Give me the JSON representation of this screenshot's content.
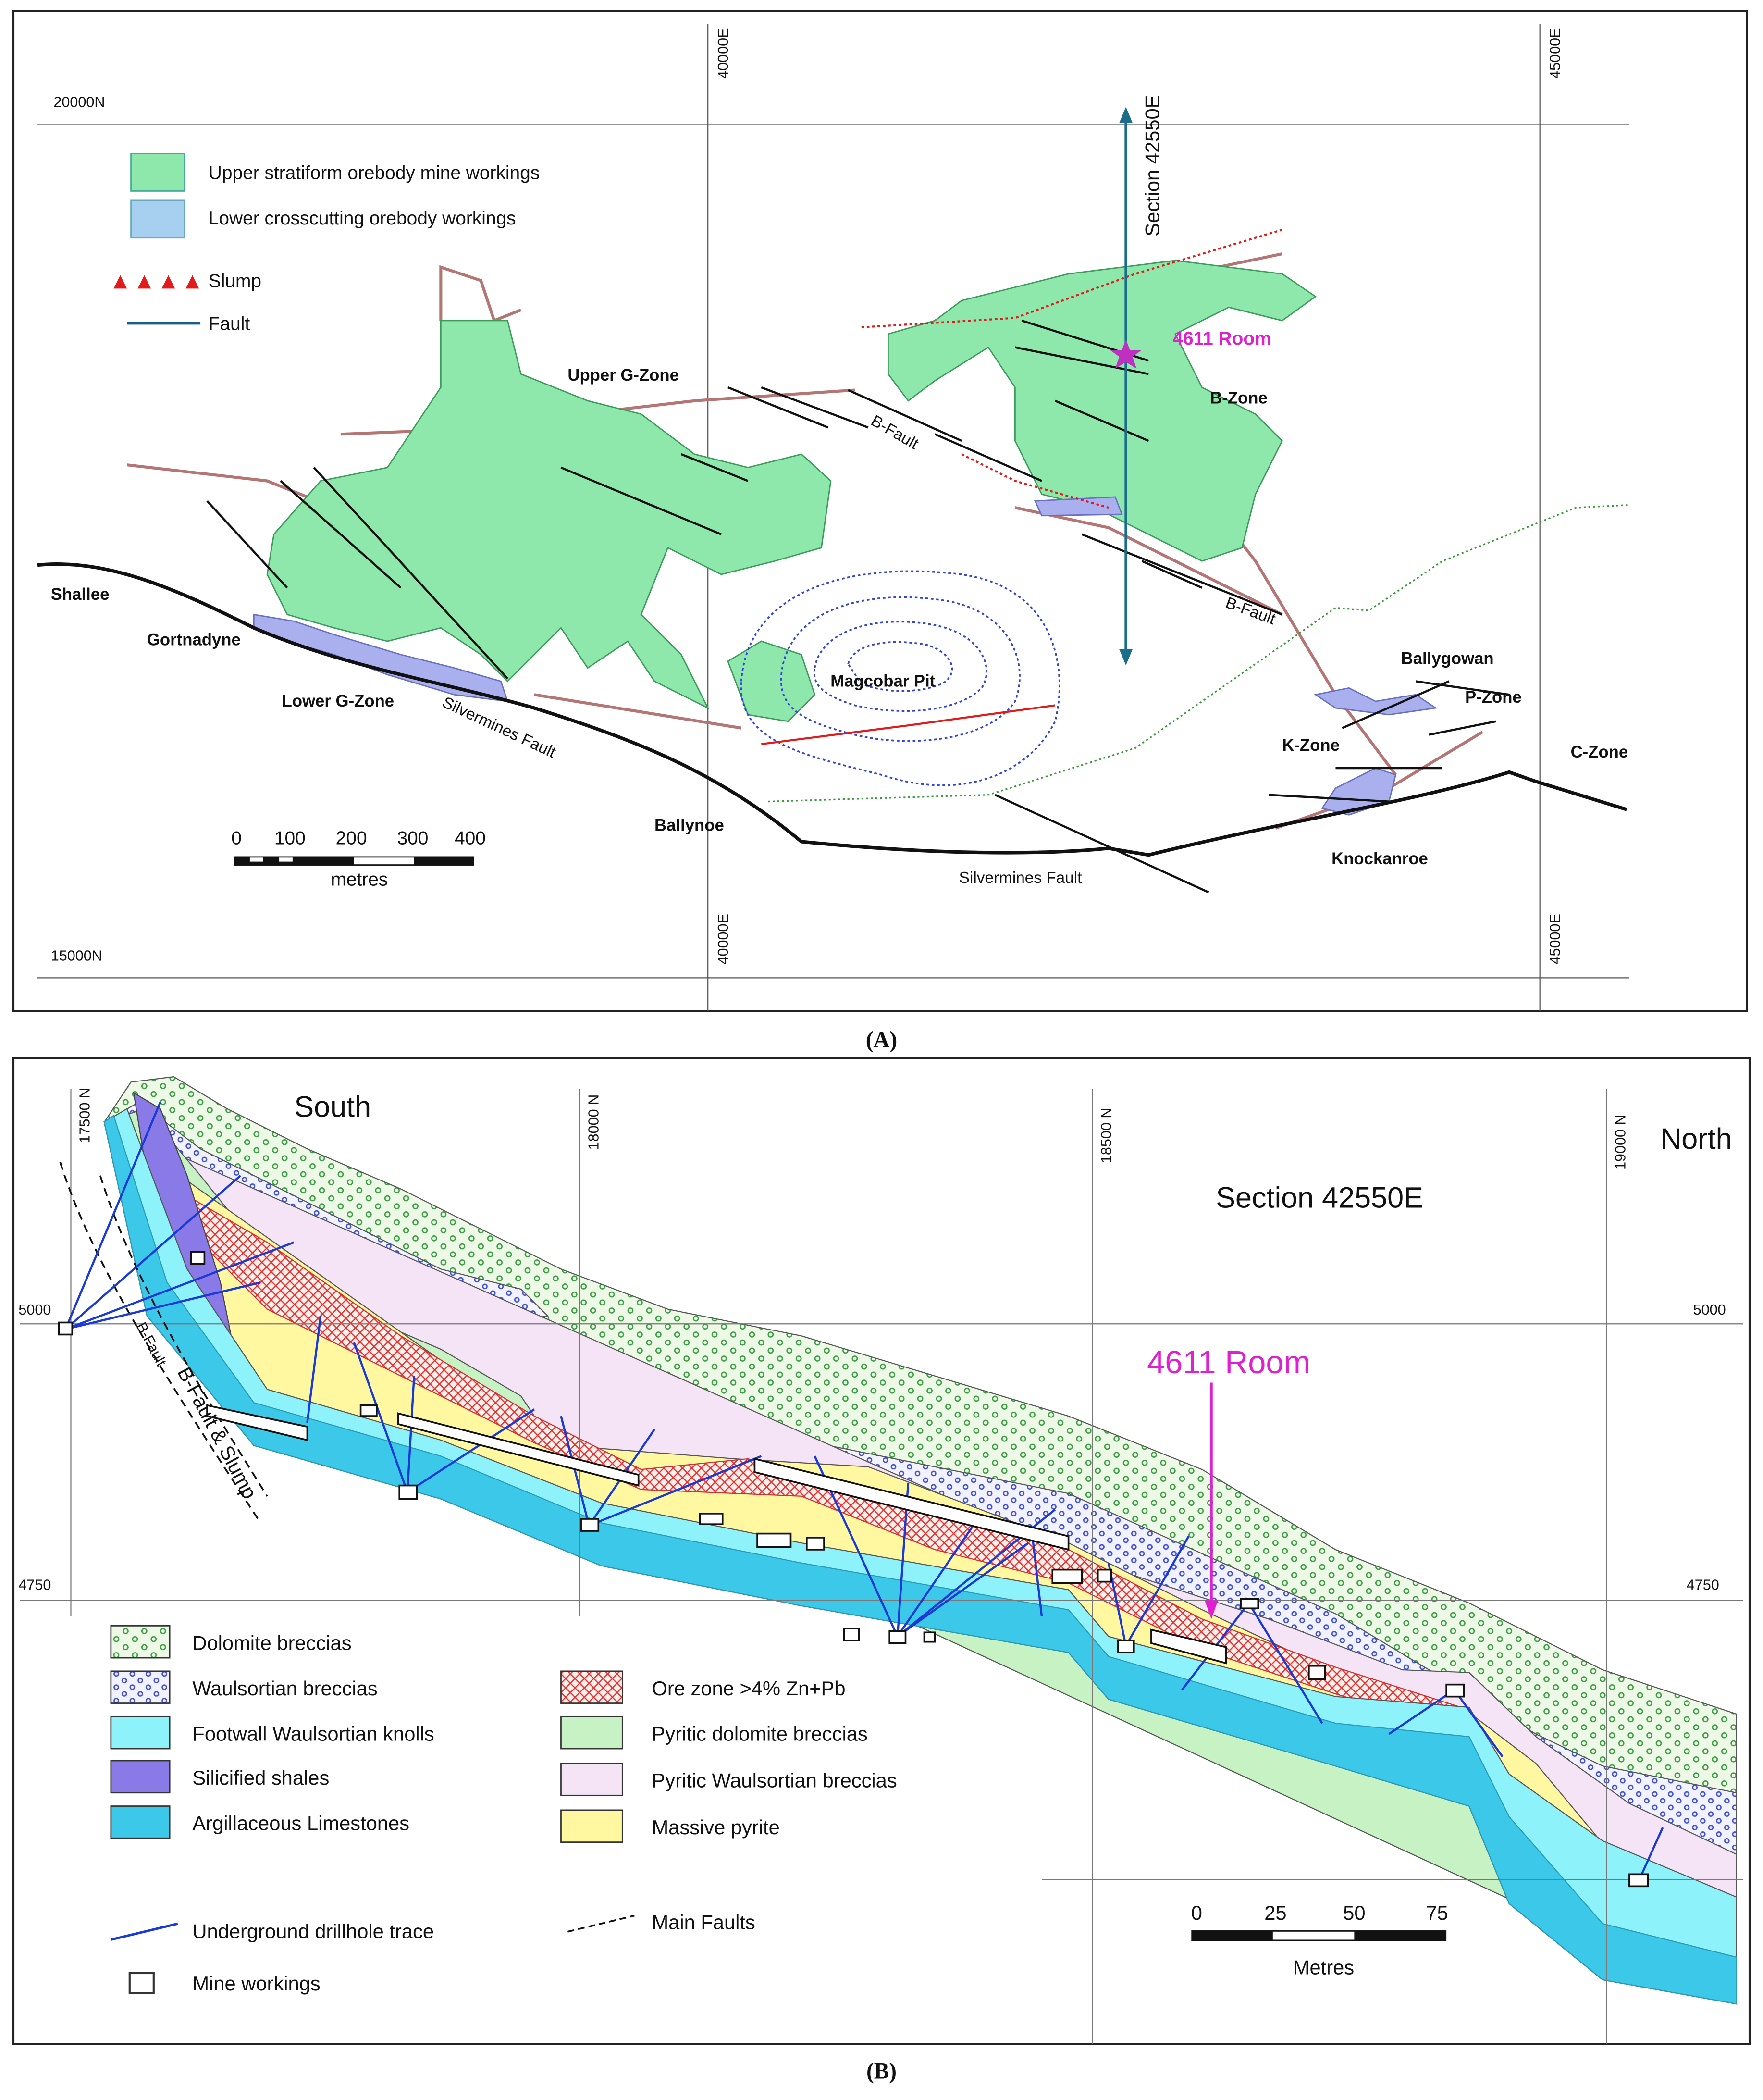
{
  "panel_a": {
    "grid_labels": [
      "20000N",
      "40000E",
      "45000E",
      "15000N",
      "40000E",
      "45000E"
    ],
    "legend": [
      "Upper stratiform orebody mine workings",
      "Lower crosscutting orebody workings",
      "Slump",
      "Fault"
    ],
    "section_label": "Section 42550E",
    "room_label": "4611 Room",
    "place_labels": [
      "Upper G-Zone",
      "B-Zone",
      "B-Fault",
      "B-Fault",
      "Shallee",
      "Gortnadyne",
      "Lower G-Zone",
      "Silvermines Fault",
      "Magcobar Pit",
      "Ballygowan",
      "P-Zone",
      "C-Zone",
      "K-Zone",
      "Ballynoe",
      "Knockanroe",
      "Silvermines Fault"
    ],
    "scale_labels": [
      "0",
      "100",
      "200",
      "300",
      "400"
    ],
    "scale_unit": "metres",
    "caption": "(A)"
  },
  "panel_b": {
    "south_label": "South",
    "north_label": "North",
    "section_label": "Section 42550E",
    "room_label": "4611 Room",
    "grid_labels": [
      "17500 N",
      "18000 N",
      "18500 N",
      "19000 N",
      "5000",
      "5000",
      "4750",
      "4750"
    ],
    "fault_labels": [
      "B-Fault & Slump",
      "B-Fault"
    ],
    "legend": [
      "Dolomite breccias",
      "Waulsortian breccias",
      "Footwall Waulsortian knolls",
      "Silicified shales",
      "Argillaceous Limestones",
      "Ore zone >4% Zn+Pb",
      "Pyritic dolomite breccias",
      "Pyritic Waulsortian breccias",
      "Massive pyrite",
      "Underground drillhole trace",
      "Main Faults",
      "Mine workings"
    ],
    "scale_labels": [
      "0",
      "25",
      "50",
      "75"
    ],
    "scale_unit": "Metres",
    "caption": "(B)"
  }
}
